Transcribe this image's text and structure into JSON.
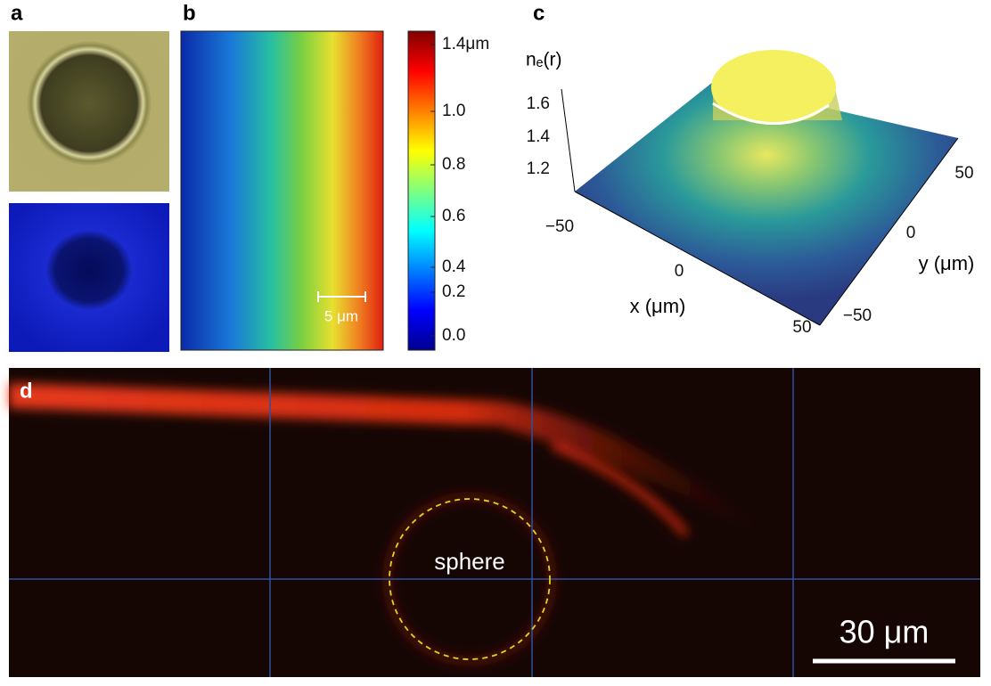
{
  "panels": {
    "a": {
      "label": "a"
    },
    "b": {
      "label": "b",
      "scale_bar": "5 μm",
      "colorbar_ticks": [
        "1.4μm",
        "1.0",
        "0.8",
        "0.6",
        "0.4",
        "0.2",
        "0.0"
      ]
    },
    "c": {
      "label": "c",
      "z_label": "nₑ(r)",
      "z_ticks": [
        "1.6",
        "1.4",
        "1.2"
      ],
      "x_ticks": [
        "−50",
        "0",
        "50"
      ],
      "x_label": "x (μm)",
      "y_ticks": [
        "50",
        "0",
        "−50"
      ],
      "y_label": "y (μm)"
    },
    "d": {
      "label": "d",
      "annotation": "sphere",
      "scale_bar": "30 μm"
    }
  }
}
